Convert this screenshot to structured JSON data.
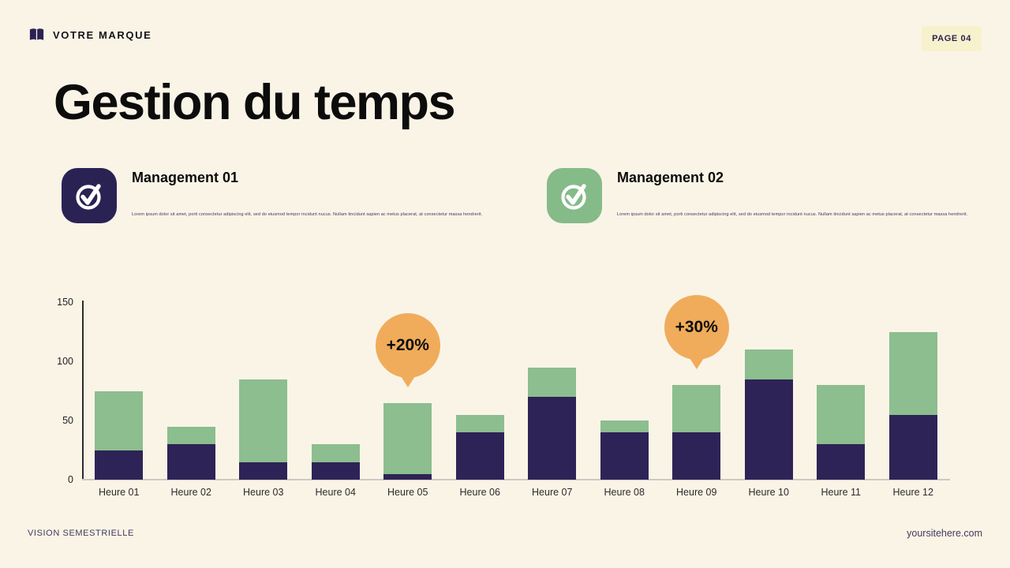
{
  "header": {
    "brand": "VOTRE MARQUE",
    "page_badge": "PAGE 04"
  },
  "title": "Gestion du temps",
  "features": [
    {
      "title": "Management 01",
      "description": "Lorem ipsum dolor sit amet, porti consectetur adipiscing elit, sed do eiusmod tempor incidunt nucus. Nullam tincidunt sapien ac metus placerat, at consectetur massa hendrerit.",
      "icon": "check-circle-icon",
      "icon_color": "#2B2254"
    },
    {
      "title": "Management 02",
      "description": "Lorem ipsum dolor sit amet, porti consectetur adipiscing elit, sed do eiusmod tempor incidunt nucus. Nullam tincidunt sapien ac metus placerat, at consectetur massa hendrerit.",
      "icon": "check-circle-icon",
      "icon_color": "#85BB88"
    }
  ],
  "chart_data": {
    "type": "bar",
    "stacked": true,
    "categories": [
      "Heure 01",
      "Heure 02",
      "Heure 03",
      "Heure 04",
      "Heure 05",
      "Heure 06",
      "Heure 07",
      "Heure 08",
      "Heure 09",
      "Heure 10",
      "Heure 11",
      "Heure 12"
    ],
    "series": [
      {
        "name": "segment-bottom-dark",
        "color": "#2E2356",
        "values": [
          25,
          30,
          15,
          15,
          5,
          40,
          70,
          40,
          40,
          85,
          30,
          55
        ]
      },
      {
        "name": "segment-top-green",
        "color": "#8CBE8F",
        "values": [
          50,
          15,
          70,
          15,
          60,
          15,
          25,
          10,
          40,
          25,
          50,
          70
        ]
      }
    ],
    "totals": [
      75,
      45,
      85,
      30,
      65,
      55,
      95,
      50,
      80,
      110,
      80,
      125
    ],
    "yticks": [
      0,
      50,
      100,
      150
    ],
    "ylim": [
      0,
      150
    ],
    "xlabel": "",
    "ylabel": "",
    "legend": "none",
    "grid": false,
    "annotations": [
      {
        "label": "+20%",
        "category_index": 4,
        "color": "#F0AC5B"
      },
      {
        "label": "+30%",
        "category_index": 8,
        "color": "#F0AC5B"
      }
    ]
  },
  "footer": {
    "left": "VISION SEMESTRIELLE",
    "right": "yoursitehere.com"
  },
  "colors": {
    "background": "#FAF4E7",
    "badge_background": "#F8F1CD",
    "bar_dark": "#2E2356",
    "bar_green": "#8CBE8F",
    "bubble_orange": "#F0AC5B",
    "baseline": "#CBC9C3",
    "axis": "#2D2D2D",
    "footer_text": "#3E3B5C"
  }
}
